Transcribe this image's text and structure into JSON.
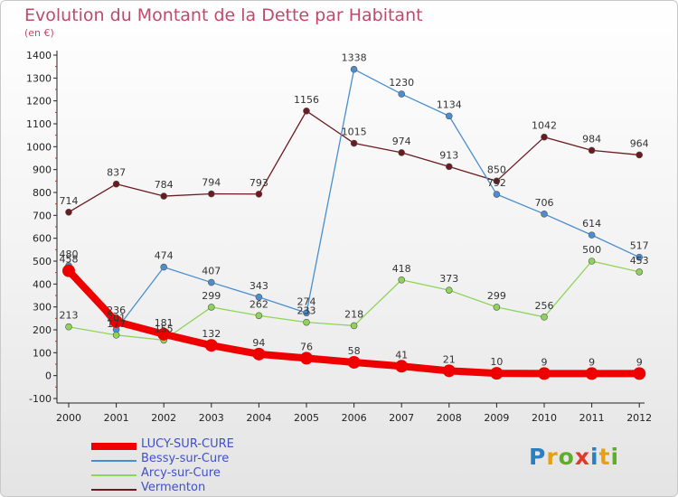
{
  "title": "Evolution du Montant de la Dette par Habitant",
  "subtitle": "(en €)",
  "logo": {
    "text": "Proxiti",
    "colors": [
      "#2a7fc1",
      "#e8a10e",
      "#5fae2a",
      "#e03a2a",
      "#2a7fc1",
      "#e8a10e",
      "#5fae2a"
    ]
  },
  "chart_data": {
    "type": "line",
    "x": [
      "2000",
      "2001",
      "2002",
      "2003",
      "2004",
      "2005",
      "2006",
      "2007",
      "2008",
      "2009",
      "2010",
      "2011",
      "2012"
    ],
    "ylim": [
      -100,
      1400
    ],
    "yticks": [
      -100,
      0,
      100,
      200,
      300,
      400,
      500,
      600,
      700,
      800,
      900,
      1000,
      1100,
      1200,
      1300,
      1400
    ],
    "grid": false,
    "legend": "bottom-left",
    "series": [
      {
        "name": "Vermenton",
        "color": "#6b1a1f",
        "values": [
          714,
          837,
          784,
          794,
          793,
          1156,
          1015,
          974,
          913,
          850,
          1042,
          984,
          964
        ],
        "labels": [
          "714",
          "837",
          "784",
          "794",
          "793",
          "1156",
          "1015",
          "974",
          "913",
          "850",
          "1042",
          "984",
          "964"
        ]
      },
      {
        "name": "Bessy-sur-Cure",
        "color": "#4a8ecf",
        "values": [
          480,
          201,
          474,
          407,
          343,
          274,
          1338,
          1230,
          1134,
          792,
          706,
          614,
          517
        ],
        "labels": [
          "480",
          "201",
          "474",
          "407",
          "343",
          "274",
          "1338",
          "1230",
          "1134",
          "792",
          "706",
          "614",
          "517"
        ]
      },
      {
        "name": "Arcy-sur-Cure",
        "color": "#8fd45a",
        "values": [
          213,
          177,
          155,
          299,
          262,
          233,
          218,
          418,
          373,
          299,
          256,
          500,
          453
        ],
        "labels": [
          "213",
          "177",
          "155",
          "299",
          "262",
          "233",
          "218",
          "418",
          "373",
          "299",
          "256",
          "500",
          "453"
        ]
      },
      {
        "name": "LUCY-SUR-CURE",
        "color": "#ee0000",
        "values": [
          458,
          236,
          181,
          132,
          94,
          76,
          58,
          41,
          21,
          10,
          9,
          9,
          9
        ],
        "labels": [
          "458",
          "236",
          "181",
          "132",
          "94",
          "76",
          "58",
          "41",
          "21",
          "10",
          "9",
          "9",
          "9"
        ]
      }
    ]
  },
  "legend_items": [
    {
      "name": "LUCY-SUR-CURE",
      "color": "#ee0000"
    },
    {
      "name": "Bessy-sur-Cure",
      "color": "#4a8ecf"
    },
    {
      "name": "Arcy-sur-Cure",
      "color": "#8fd45a"
    },
    {
      "name": "Vermenton",
      "color": "#6b1a1f"
    }
  ],
  "legend_text_color": "#4050c8"
}
